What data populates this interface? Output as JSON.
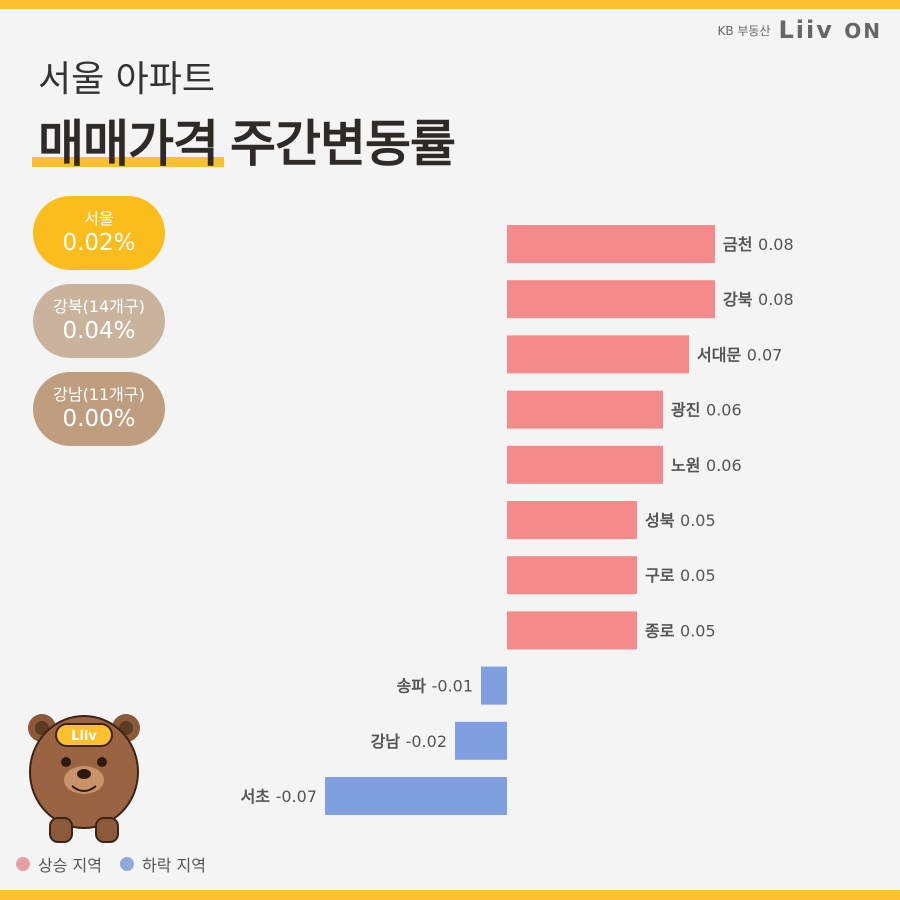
{
  "brand": {
    "kb_text": "KB 부동산",
    "logo_text": "Liiv",
    "logo_on": "ON"
  },
  "title": {
    "line1": "서울 아파트",
    "line2_highlight": "매매가격",
    "line2_rest": "주간변동률"
  },
  "summary": [
    {
      "label": "서울",
      "value": "0.02%"
    },
    {
      "label": "강북(14개구)",
      "value": "0.04%"
    },
    {
      "label": "강남(11개구)",
      "value": "0.00%"
    }
  ],
  "mascot": {
    "badge_text": "Liiv"
  },
  "legend": [
    {
      "label": "상승 지역",
      "color": "#e8a0a3"
    },
    {
      "label": "하락 지역",
      "color": "#8fa9dd"
    }
  ],
  "colors": {
    "rise": "#f48a8a",
    "fall": "#7f9fe0",
    "accent": "#fbc02d"
  },
  "chart_data": {
    "type": "bar",
    "orientation": "horizontal",
    "categories": [
      "금천",
      "강북",
      "서대문",
      "광진",
      "노원",
      "성북",
      "구로",
      "종로",
      "송파",
      "강남",
      "서초"
    ],
    "values": [
      0.08,
      0.08,
      0.07,
      0.06,
      0.06,
      0.05,
      0.05,
      0.05,
      -0.01,
      -0.02,
      -0.07
    ],
    "value_labels": [
      "0.08",
      "0.08",
      "0.07",
      "0.06",
      "0.06",
      "0.05",
      "0.05",
      "0.05",
      "-0.01",
      "-0.02",
      "-0.07"
    ]
  }
}
